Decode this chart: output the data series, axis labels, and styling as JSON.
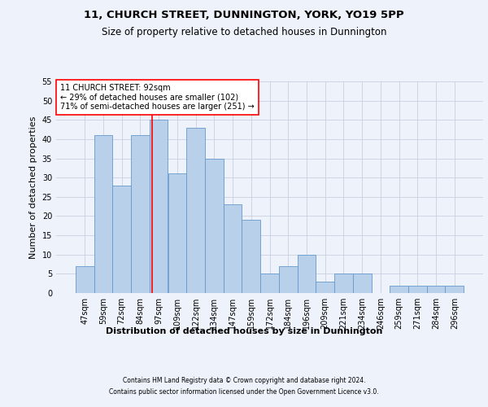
{
  "title_line1": "11, CHURCH STREET, DUNNINGTON, YORK, YO19 5PP",
  "title_line2": "Size of property relative to detached houses in Dunnington",
  "xlabel": "Distribution of detached houses by size in Dunnington",
  "ylabel": "Number of detached properties",
  "footer_line1": "Contains HM Land Registry data © Crown copyright and database right 2024.",
  "footer_line2": "Contains public sector information licensed under the Open Government Licence v3.0.",
  "bar_labels": [
    "47sqm",
    "59sqm",
    "72sqm",
    "84sqm",
    "97sqm",
    "109sqm",
    "122sqm",
    "134sqm",
    "147sqm",
    "159sqm",
    "172sqm",
    "184sqm",
    "196sqm",
    "209sqm",
    "221sqm",
    "234sqm",
    "246sqm",
    "259sqm",
    "271sqm",
    "284sqm",
    "296sqm"
  ],
  "bar_values": [
    7,
    41,
    28,
    41,
    45,
    31,
    43,
    35,
    23,
    19,
    5,
    7,
    10,
    3,
    5,
    5,
    0,
    2,
    2,
    2,
    2
  ],
  "bar_color": "#B8D0EA",
  "bar_edge_color": "#6699CC",
  "bar_width": 1.0,
  "red_line_x": 3.62,
  "annotation_text": "11 CHURCH STREET: 92sqm\n← 29% of detached houses are smaller (102)\n71% of semi-detached houses are larger (251) →",
  "annotation_box_color": "white",
  "annotation_border_color": "red",
  "ylim": [
    0,
    55
  ],
  "yticks": [
    0,
    5,
    10,
    15,
    20,
    25,
    30,
    35,
    40,
    45,
    50,
    55
  ],
  "grid_color": "#C8D0E0",
  "background_color": "#EEF2FA",
  "axes_bg_color": "#EEF2FA",
  "title_fontsize": 9.5,
  "subtitle_fontsize": 8.5,
  "ylabel_fontsize": 8,
  "xlabel_fontsize": 8,
  "tick_fontsize": 7,
  "annotation_fontsize": 7,
  "footer_fontsize": 5.5
}
